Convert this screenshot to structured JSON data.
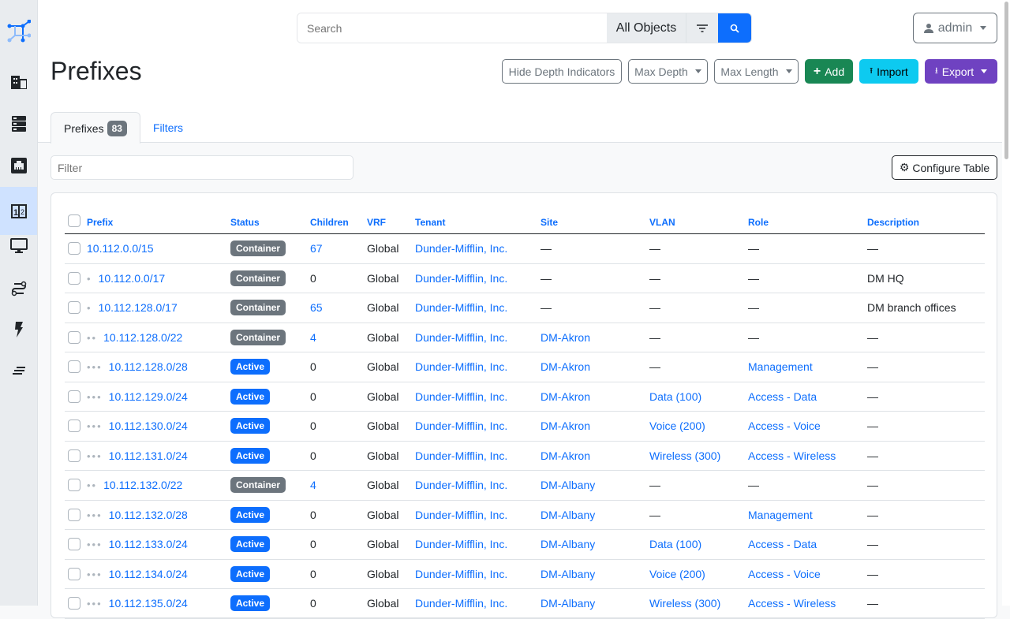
{
  "sidebar": {
    "items": [
      {
        "name": "logo",
        "icon": "netbox-logo-icon"
      },
      {
        "name": "organization",
        "icon": "building-icon"
      },
      {
        "name": "racks",
        "icon": "server-icon"
      },
      {
        "name": "devices",
        "icon": "ethernet-icon"
      },
      {
        "name": "ipam",
        "icon": "numeric-icon",
        "active": true
      },
      {
        "name": "virtualization",
        "icon": "monitor-icon"
      },
      {
        "name": "circuits",
        "icon": "transit-icon"
      },
      {
        "name": "power",
        "icon": "flash-icon"
      },
      {
        "name": "other",
        "icon": "notes-icon"
      }
    ]
  },
  "search": {
    "placeholder": "Search",
    "scope": "All Objects"
  },
  "user": {
    "label": "admin"
  },
  "page": {
    "title": "Prefixes"
  },
  "actions": {
    "hide_depth": "Hide Depth Indicators",
    "max_depth": "Max Depth",
    "max_length": "Max Length",
    "add": "Add",
    "import": "Import",
    "export": "Export"
  },
  "colors": {
    "primary": "#0d6efd",
    "add": "#198754",
    "import": "#0dcaf0",
    "export": "#6f42c1",
    "container": "#6c757d",
    "active": "#0d6efd"
  },
  "tabs": [
    {
      "label": "Prefixes",
      "count": "83"
    },
    {
      "label": "Filters"
    }
  ],
  "filter": {
    "placeholder": "Filter"
  },
  "configure_label": "Configure Table",
  "table": {
    "columns": [
      "Prefix",
      "Status",
      "Children",
      "VRF",
      "Tenant",
      "Site",
      "VLAN",
      "Role",
      "Description"
    ],
    "rows": [
      {
        "depth": 0,
        "prefix": "10.112.0.0/15",
        "status": "Container",
        "children": "67",
        "children_link": true,
        "vrf": "Global",
        "tenant": "Dunder-Mifflin, Inc.",
        "site": "—",
        "vlan": "—",
        "role": "—",
        "description": "—"
      },
      {
        "depth": 1,
        "prefix": "10.112.0.0/17",
        "status": "Container",
        "children": "0",
        "children_link": false,
        "vrf": "Global",
        "tenant": "Dunder-Mifflin, Inc.",
        "site": "—",
        "vlan": "—",
        "role": "—",
        "description": "DM HQ"
      },
      {
        "depth": 1,
        "prefix": "10.112.128.0/17",
        "status": "Container",
        "children": "65",
        "children_link": true,
        "vrf": "Global",
        "tenant": "Dunder-Mifflin, Inc.",
        "site": "—",
        "vlan": "—",
        "role": "—",
        "description": "DM branch offices"
      },
      {
        "depth": 2,
        "prefix": "10.112.128.0/22",
        "status": "Container",
        "children": "4",
        "children_link": true,
        "vrf": "Global",
        "tenant": "Dunder-Mifflin, Inc.",
        "site": "DM-Akron",
        "vlan": "—",
        "role": "—",
        "description": "—"
      },
      {
        "depth": 3,
        "prefix": "10.112.128.0/28",
        "status": "Active",
        "children": "0",
        "children_link": false,
        "vrf": "Global",
        "tenant": "Dunder-Mifflin, Inc.",
        "site": "DM-Akron",
        "vlan": "—",
        "role": "Management",
        "description": "—"
      },
      {
        "depth": 3,
        "prefix": "10.112.129.0/24",
        "status": "Active",
        "children": "0",
        "children_link": false,
        "vrf": "Global",
        "tenant": "Dunder-Mifflin, Inc.",
        "site": "DM-Akron",
        "vlan": "Data (100)",
        "role": "Access - Data",
        "description": "—"
      },
      {
        "depth": 3,
        "prefix": "10.112.130.0/24",
        "status": "Active",
        "children": "0",
        "children_link": false,
        "vrf": "Global",
        "tenant": "Dunder-Mifflin, Inc.",
        "site": "DM-Akron",
        "vlan": "Voice (200)",
        "role": "Access - Voice",
        "description": "—"
      },
      {
        "depth": 3,
        "prefix": "10.112.131.0/24",
        "status": "Active",
        "children": "0",
        "children_link": false,
        "vrf": "Global",
        "tenant": "Dunder-Mifflin, Inc.",
        "site": "DM-Akron",
        "vlan": "Wireless (300)",
        "role": "Access - Wireless",
        "description": "—"
      },
      {
        "depth": 2,
        "prefix": "10.112.132.0/22",
        "status": "Container",
        "children": "4",
        "children_link": true,
        "vrf": "Global",
        "tenant": "Dunder-Mifflin, Inc.",
        "site": "DM-Albany",
        "vlan": "—",
        "role": "—",
        "description": "—"
      },
      {
        "depth": 3,
        "prefix": "10.112.132.0/28",
        "status": "Active",
        "children": "0",
        "children_link": false,
        "vrf": "Global",
        "tenant": "Dunder-Mifflin, Inc.",
        "site": "DM-Albany",
        "vlan": "—",
        "role": "Management",
        "description": "—"
      },
      {
        "depth": 3,
        "prefix": "10.112.133.0/24",
        "status": "Active",
        "children": "0",
        "children_link": false,
        "vrf": "Global",
        "tenant": "Dunder-Mifflin, Inc.",
        "site": "DM-Albany",
        "vlan": "Data (100)",
        "role": "Access - Data",
        "description": "—"
      },
      {
        "depth": 3,
        "prefix": "10.112.134.0/24",
        "status": "Active",
        "children": "0",
        "children_link": false,
        "vrf": "Global",
        "tenant": "Dunder-Mifflin, Inc.",
        "site": "DM-Albany",
        "vlan": "Voice (200)",
        "role": "Access - Voice",
        "description": "—"
      },
      {
        "depth": 3,
        "prefix": "10.112.135.0/24",
        "status": "Active",
        "children": "0",
        "children_link": false,
        "vrf": "Global",
        "tenant": "Dunder-Mifflin, Inc.",
        "site": "DM-Albany",
        "vlan": "Wireless (300)",
        "role": "Access - Wireless",
        "description": "—"
      }
    ]
  }
}
